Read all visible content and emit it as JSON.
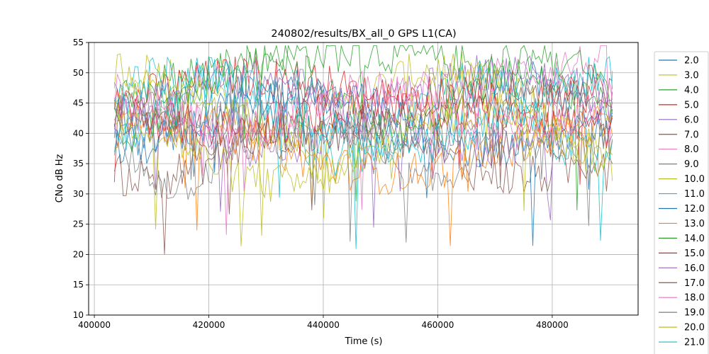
{
  "chart_data": {
    "type": "line",
    "title": "240802/results/BX_all_0 GPS L1(CA)",
    "xlabel": "Time (s)",
    "ylabel": "CNo dB Hz",
    "xlim": [
      399000,
      495000
    ],
    "ylim": [
      10,
      55
    ],
    "xticks": [
      400000,
      420000,
      440000,
      460000,
      480000
    ],
    "xtick_labels": [
      "400000",
      "420000",
      "440000",
      "460000",
      "480000"
    ],
    "yticks": [
      10,
      15,
      20,
      25,
      30,
      35,
      40,
      45,
      50,
      55
    ],
    "ytick_labels": [
      "10",
      "15",
      "20",
      "25",
      "30",
      "35",
      "40",
      "45",
      "50",
      "55"
    ],
    "grid": true,
    "legend_position": "outside-right",
    "data_span": [
      403500,
      490500
    ],
    "series": [
      {
        "name": "2.0",
        "color": "#1f77b4"
      },
      {
        "name": "3.0",
        "color": "#bcbd22"
      },
      {
        "name": "4.0",
        "color": "#2ca02c"
      },
      {
        "name": "5.0",
        "color": "#d62728"
      },
      {
        "name": "6.0",
        "color": "#9467bd"
      },
      {
        "name": "7.0",
        "color": "#8c564b"
      },
      {
        "name": "8.0",
        "color": "#e377c2"
      },
      {
        "name": "9.0",
        "color": "#7f7f7f"
      },
      {
        "name": "10.0",
        "color": "#bcbd22"
      },
      {
        "name": "11.0",
        "color": "#17becf"
      },
      {
        "name": "12.0",
        "color": "#1f77b4"
      },
      {
        "name": "13.0",
        "color": "#ff7f0e"
      },
      {
        "name": "14.0",
        "color": "#2ca02c"
      },
      {
        "name": "15.0",
        "color": "#d62728"
      },
      {
        "name": "16.0",
        "color": "#9467bd"
      },
      {
        "name": "17.0",
        "color": "#8c564b"
      },
      {
        "name": "18.0",
        "color": "#e377c2"
      },
      {
        "name": "19.0",
        "color": "#7f7f7f"
      },
      {
        "name": "20.0",
        "color": "#bcbd22"
      },
      {
        "name": "21.0",
        "color": "#17becf"
      }
    ]
  }
}
